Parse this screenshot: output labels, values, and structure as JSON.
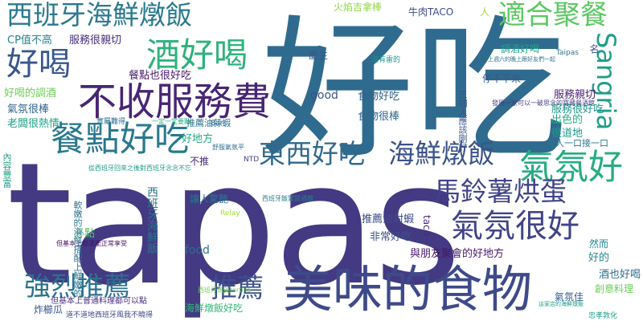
{
  "words": [
    {
      "text": "tapas",
      "color": "#433a83"
    },
    {
      "text": "好吃",
      "color": "#2f6b8e"
    },
    {
      "text": "美味的食物",
      "color": "#3e4a89"
    },
    {
      "text": "西班牙海鮮燉飯",
      "color": "#2a788e"
    },
    {
      "text": "不收服務費",
      "color": "#482575"
    },
    {
      "text": "餐點好吃",
      "color": "#2a788e"
    },
    {
      "text": "酒好喝",
      "color": "#2db27d"
    },
    {
      "text": "好喝",
      "color": "#39568c"
    },
    {
      "text": "適合聚餐",
      "color": "#5cc863"
    },
    {
      "text": "Sangria",
      "color": "#1f9e89"
    },
    {
      "text": "氣氛好",
      "color": "#25ac82"
    },
    {
      "text": "東西好吃",
      "color": "#31688e"
    },
    {
      "text": "海鮮燉飯",
      "color": "#3b528b"
    },
    {
      "text": "馬鈴薯烘蛋",
      "color": "#404387"
    },
    {
      "text": "氣氛很好",
      "color": "#414487"
    },
    {
      "text": "強烈推薦",
      "color": "#2c728e"
    },
    {
      "text": "推薦",
      "color": "#3b518b"
    },
    {
      "text": "CP值不高",
      "color": "#26828e"
    },
    {
      "text": "服務很親切",
      "color": "#472d7b"
    },
    {
      "text": "火焰吉拿棒",
      "color": "#8fd744"
    },
    {
      "text": "牛肉TACO",
      "color": "#3f4889"
    },
    {
      "text": "人",
      "color": "#a8db34"
    },
    {
      "text": "調酒好喝",
      "color": "#20a486"
    },
    {
      "text": "名",
      "color": "#3a548c"
    },
    {
      "text": "餐點也很好吃",
      "color": "#481a6c"
    },
    {
      "text": "好喝的調酒",
      "color": "#6ece58"
    },
    {
      "text": "氣氛很棒",
      "color": "#33638d"
    },
    {
      "text": "老闆很熱情",
      "color": "#20a386"
    },
    {
      "text": "食物很棒",
      "color": "#31688e"
    },
    {
      "text": "食物好吃",
      "color": "#33628d"
    },
    {
      "text": "good",
      "color": "#3b528b"
    },
    {
      "text": "慶生",
      "color": "#39568c"
    },
    {
      "text": "服務親切",
      "color": "#481f70"
    },
    {
      "text": "服務很好吃",
      "color": "#1f968b"
    },
    {
      "text": "停不下來",
      "color": "#38588c"
    },
    {
      "text": "很道地",
      "color": "#1e9c89"
    },
    {
      "text": "出色的",
      "color": "#25ac82"
    },
    {
      "text": "讓人一口接一口",
      "color": "#2c718e"
    },
    {
      "text": "讓人驚艷",
      "color": "#2b748e"
    },
    {
      "text": "推薦油封蝦",
      "color": "#3e4989"
    },
    {
      "text": "好地方",
      "color": "#22a785"
    },
    {
      "text": "不推",
      "color": "#472a7a"
    },
    {
      "text": "food",
      "color": "#2d708e"
    },
    {
      "text": "taco",
      "color": "#472c7a"
    },
    {
      "text": "非常好吃",
      "color": "#3b528b"
    },
    {
      "text": "與朋友聚會的好地方",
      "color": "#481769"
    },
    {
      "text": "好的",
      "color": "#23898e"
    },
    {
      "text": "酒也好喝",
      "color": "#2e6e8e"
    },
    {
      "text": "創意料理",
      "color": "#6ccd5a"
    },
    {
      "text": "氣氛佳",
      "color": "#355f8d"
    },
    {
      "text": "然而",
      "color": "#24868e"
    },
    {
      "text": "必點",
      "color": "#52c569"
    },
    {
      "text": "海鮮燉飯好吃",
      "color": "#35b779"
    },
    {
      "text": "炸櫛瓜",
      "color": "#39568c"
    },
    {
      "text": "西班牙海鮮飯",
      "color": "#2c738e"
    },
    {
      "text": "推薦油蒜蝦",
      "color": "#2a768e"
    },
    {
      "text": "內容豐富",
      "color": "#1f9f88"
    },
    {
      "text": "三個人應該剛好",
      "color": "#3a548c"
    },
    {
      "text": "Bar",
      "color": "#31688e"
    },
    {
      "text": "Relay",
      "color": "#aadc32"
    },
    {
      "text": "NTD",
      "color": "#3f4788"
    },
    {
      "text": "Taipas",
      "color": "#2c728e"
    },
    {
      "text": "實屬難得",
      "color": "#2d708e"
    },
    {
      "text": "沒有雷的",
      "color": "#21918c"
    },
    {
      "text": "西班牙飯實質酒館",
      "color": "#277f8e"
    },
    {
      "text": "一定一定要點",
      "color": "#28ae80"
    },
    {
      "text": "舒服氣氛平",
      "color": "#2e6f8e"
    },
    {
      "text": "從西班牙回來之後對西班牙念念不忘",
      "color": "#1f9a8a"
    },
    {
      "text": "但基本上都還能正常享受",
      "color": "#471365"
    },
    {
      "text": "道不道地西班牙風我不曉得",
      "color": "#3f4788"
    },
    {
      "text": "軟嫩的海鮮搭配上鮮嫩的",
      "color": "#2b758e"
    },
    {
      "text": "但基本上普通料理都可以點",
      "color": "#472f7d"
    },
    {
      "text": "西班牙無英tortilla",
      "color": "#75d054"
    },
    {
      "text": "發現一家可以一破思念的寶藏餐酒館",
      "color": "#433e85"
    },
    {
      "text": "上週六的晚上跟好友們一起",
      "color": "#2c728e"
    },
    {
      "text": "這家店的海鮮燉飯",
      "color": "#1fa088"
    },
    {
      "text": "忠孝敦化",
      "color": "#1f9e89"
    }
  ]
}
